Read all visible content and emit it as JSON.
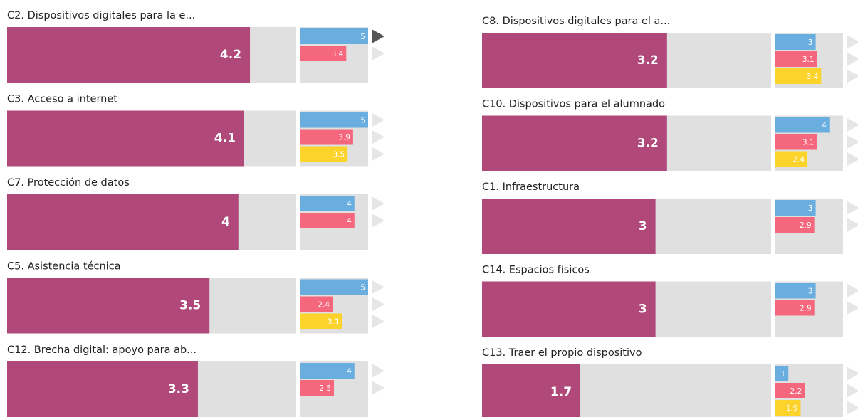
{
  "chart_data": [
    {
      "type": "bar",
      "title": "C2. Dispositivos digitales para la e...",
      "xlim": [
        0,
        5
      ],
      "series": [
        {
          "color": "#b0487a",
          "values": [
            4.2
          ]
        },
        {
          "color": "#6aaee0",
          "values": [
            5
          ]
        },
        {
          "color": "#f4677c",
          "values": [
            3.4
          ]
        }
      ]
    },
    {
      "type": "bar",
      "title": "C3. Acceso a internet",
      "xlim": [
        0,
        5
      ],
      "series": [
        {
          "color": "#b0487a",
          "values": [
            4.1
          ]
        },
        {
          "color": "#6aaee0",
          "values": [
            5
          ]
        },
        {
          "color": "#f4677c",
          "values": [
            3.9
          ]
        },
        {
          "color": "#fbd32b",
          "values": [
            3.5
          ]
        }
      ]
    },
    {
      "type": "bar",
      "title": "C7. Protección de datos",
      "xlim": [
        0,
        5
      ],
      "series": [
        {
          "color": "#b0487a",
          "values": [
            4
          ]
        },
        {
          "color": "#6aaee0",
          "values": [
            4
          ]
        },
        {
          "color": "#f4677c",
          "values": [
            4
          ]
        }
      ]
    },
    {
      "type": "bar",
      "title": "C5. Asistencia técnica",
      "xlim": [
        0,
        5
      ],
      "series": [
        {
          "color": "#b0487a",
          "values": [
            3.5
          ]
        },
        {
          "color": "#6aaee0",
          "values": [
            5
          ]
        },
        {
          "color": "#f4677c",
          "values": [
            2.4
          ]
        },
        {
          "color": "#fbd32b",
          "values": [
            3.1
          ]
        }
      ]
    },
    {
      "type": "bar",
      "title": "C12. Brecha digital: apoyo para ab...",
      "xlim": [
        0,
        5
      ],
      "series": [
        {
          "color": "#b0487a",
          "values": [
            3.3
          ]
        },
        {
          "color": "#6aaee0",
          "values": [
            4
          ]
        },
        {
          "color": "#f4677c",
          "values": [
            2.5
          ]
        }
      ]
    },
    {
      "type": "bar",
      "title": "C8. Dispositivos digitales para el a...",
      "xlim": [
        0,
        5
      ],
      "series": [
        {
          "color": "#b0487a",
          "values": [
            3.2
          ]
        },
        {
          "color": "#6aaee0",
          "values": [
            3
          ]
        },
        {
          "color": "#f4677c",
          "values": [
            3.1
          ]
        },
        {
          "color": "#fbd32b",
          "values": [
            3.4
          ]
        }
      ]
    },
    {
      "type": "bar",
      "title": "C10. Dispositivos para el alumnado",
      "xlim": [
        0,
        5
      ],
      "series": [
        {
          "color": "#b0487a",
          "values": [
            3.2
          ]
        },
        {
          "color": "#6aaee0",
          "values": [
            4
          ]
        },
        {
          "color": "#f4677c",
          "values": [
            3.1
          ]
        },
        {
          "color": "#fbd32b",
          "values": [
            2.4
          ]
        }
      ]
    },
    {
      "type": "bar",
      "title": "C1. Infraestructura",
      "xlim": [
        0,
        5
      ],
      "series": [
        {
          "color": "#b0487a",
          "values": [
            3
          ]
        },
        {
          "color": "#6aaee0",
          "values": [
            3
          ]
        },
        {
          "color": "#f4677c",
          "values": [
            2.9
          ]
        }
      ]
    },
    {
      "type": "bar",
      "title": "C14. Espacios físicos",
      "xlim": [
        0,
        5
      ],
      "series": [
        {
          "color": "#b0487a",
          "values": [
            3
          ]
        },
        {
          "color": "#6aaee0",
          "values": [
            3
          ]
        },
        {
          "color": "#f4677c",
          "values": [
            2.9
          ]
        }
      ]
    },
    {
      "type": "bar",
      "title": "C13. Traer el propio dispositivo",
      "xlim": [
        0,
        5
      ],
      "series": [
        {
          "color": "#b0487a",
          "values": [
            1.7
          ]
        },
        {
          "color": "#6aaee0",
          "values": [
            1
          ]
        },
        {
          "color": "#f4677c",
          "values": [
            2.2
          ]
        },
        {
          "color": "#fbd32b",
          "values": [
            1.9
          ]
        }
      ]
    }
  ]
}
